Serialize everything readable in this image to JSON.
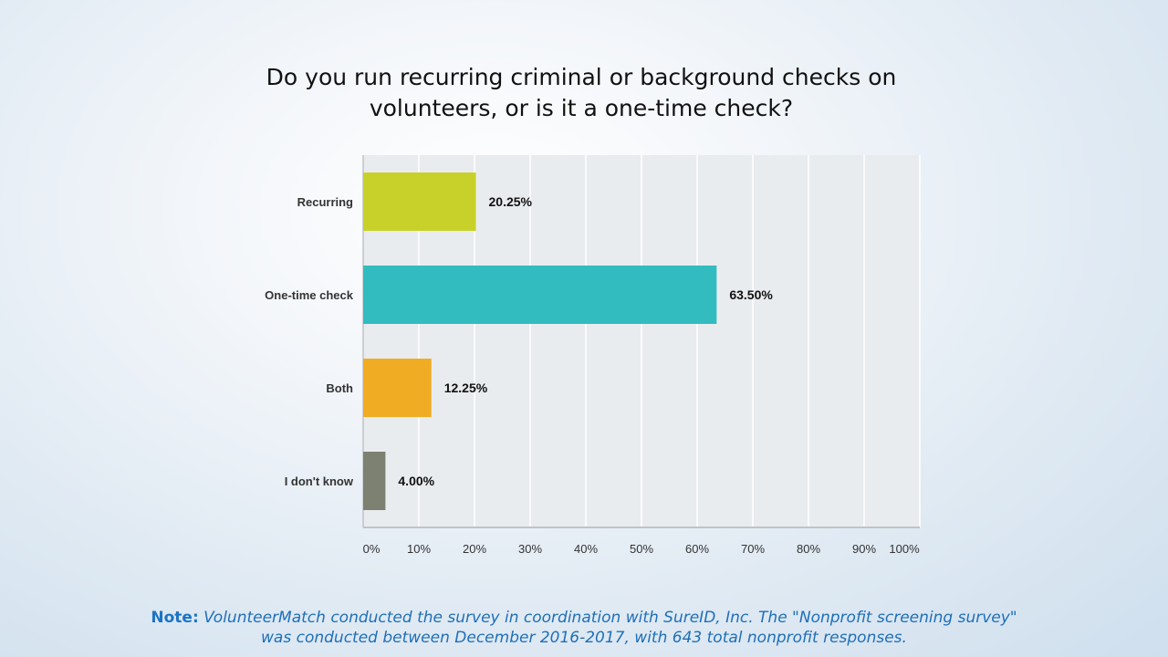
{
  "title_lines": [
    "Do you run recurring criminal or background checks on",
    "volunteers, or is it a one-time check?"
  ],
  "note": {
    "label": "Note:",
    "line1": "VolunteerMatch conducted the survey in coordination with SureID, Inc. The \"Nonprofit screening survey\"",
    "line2": "was conducted between December 2016-2017, with 643 total nonprofit responses."
  },
  "colors": {
    "Recurring": "#c8d12a",
    "One-time check": "#33bcbf",
    "Both": "#f0ac22",
    "I don't know": "#7d8171",
    "plot_background": "#e9ecef",
    "gridline": "#ffffff",
    "title": "#111111",
    "note": "#1f6fb8"
  },
  "chart_data": {
    "type": "bar",
    "orientation": "horizontal",
    "title": "Do you run recurring criminal or background checks on volunteers, or is it a one-time check?",
    "categories": [
      "Recurring",
      "One-time check",
      "Both",
      "I don't know"
    ],
    "values": [
      20.25,
      63.5,
      12.25,
      4.0
    ],
    "value_labels": [
      "20.25%",
      "63.50%",
      "12.25%",
      "4.00%"
    ],
    "x_ticks": [
      "0%",
      "10%",
      "20%",
      "30%",
      "40%",
      "50%",
      "60%",
      "70%",
      "80%",
      "90%",
      "100%"
    ],
    "xlim": [
      0,
      100
    ],
    "xlabel": "",
    "ylabel": "",
    "grid": true,
    "legend": "none"
  }
}
